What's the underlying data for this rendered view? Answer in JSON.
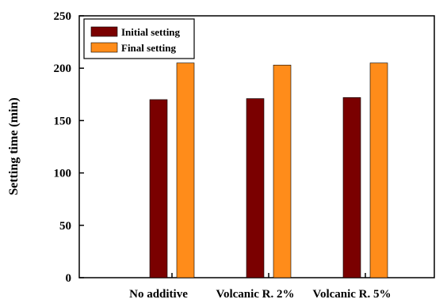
{
  "chart_data": {
    "type": "bar",
    "title": "",
    "xlabel": "",
    "ylabel": "Setting time (min)",
    "categories": [
      "No additive",
      "Volcanic R. 2%",
      "Volcanic R. 5%"
    ],
    "series": [
      {
        "name": "Initial setting",
        "values": [
          170,
          171,
          172
        ],
        "color": "#7a0000"
      },
      {
        "name": "Final setting",
        "values": [
          205,
          203,
          205
        ],
        "color": "#ff8c1a"
      }
    ],
    "ylim": [
      0,
      250
    ],
    "yticks": [
      "0",
      "50",
      "100",
      "150",
      "200",
      "250"
    ],
    "grid": false,
    "legend_position": "top-left"
  }
}
